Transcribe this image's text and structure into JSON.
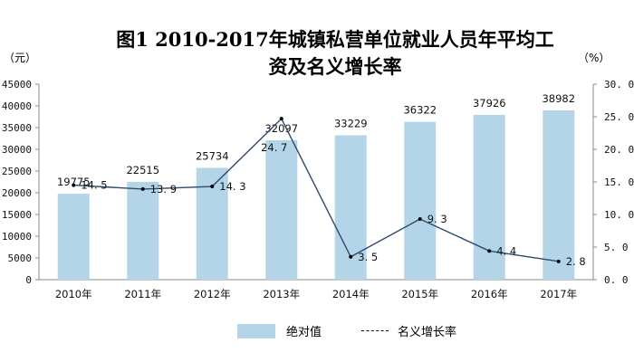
{
  "title": {
    "line1": "图1      2010-2017年城镇私营单位就业人员年平均工",
    "line2": "资及名义增长率"
  },
  "axes": {
    "left_unit": "（元）",
    "right_unit": "（%）"
  },
  "legend": {
    "bar_label": "绝对值",
    "line_label": "名义增长率"
  },
  "colors": {
    "bar": "#b4d5e8",
    "line": "#2e4a6e",
    "axis": "#888888"
  },
  "chart_data": {
    "type": "bar+line",
    "title": "图1 2010-2017年城镇私营单位就业人员年平均工资及名义增长率",
    "categories": [
      "2010年",
      "2011年",
      "2012年",
      "2013年",
      "2014年",
      "2015年",
      "2016年",
      "2017年"
    ],
    "series": [
      {
        "name": "绝对值",
        "type": "bar",
        "axis": "left",
        "values": [
          19775,
          22515,
          25734,
          32097,
          33229,
          36322,
          37926,
          38982
        ]
      },
      {
        "name": "名义增长率",
        "type": "line",
        "axis": "right",
        "values": [
          14.5,
          13.9,
          14.3,
          24.7,
          3.5,
          9.3,
          4.4,
          2.8
        ]
      }
    ],
    "ylabel": "（元）",
    "y2label": "（%）",
    "ylim": [
      0,
      45000
    ],
    "y2lim": [
      0,
      30.0
    ],
    "yticks": [
      "0",
      "5000",
      "10000",
      "15000",
      "20000",
      "25000",
      "30000",
      "35000",
      "40000",
      "45000"
    ],
    "y2ticks": [
      "0.0",
      "5.0",
      "10.0",
      "15.0",
      "20.0",
      "25.0",
      "30.0"
    ],
    "grid": false,
    "legend_position": "bottom"
  }
}
